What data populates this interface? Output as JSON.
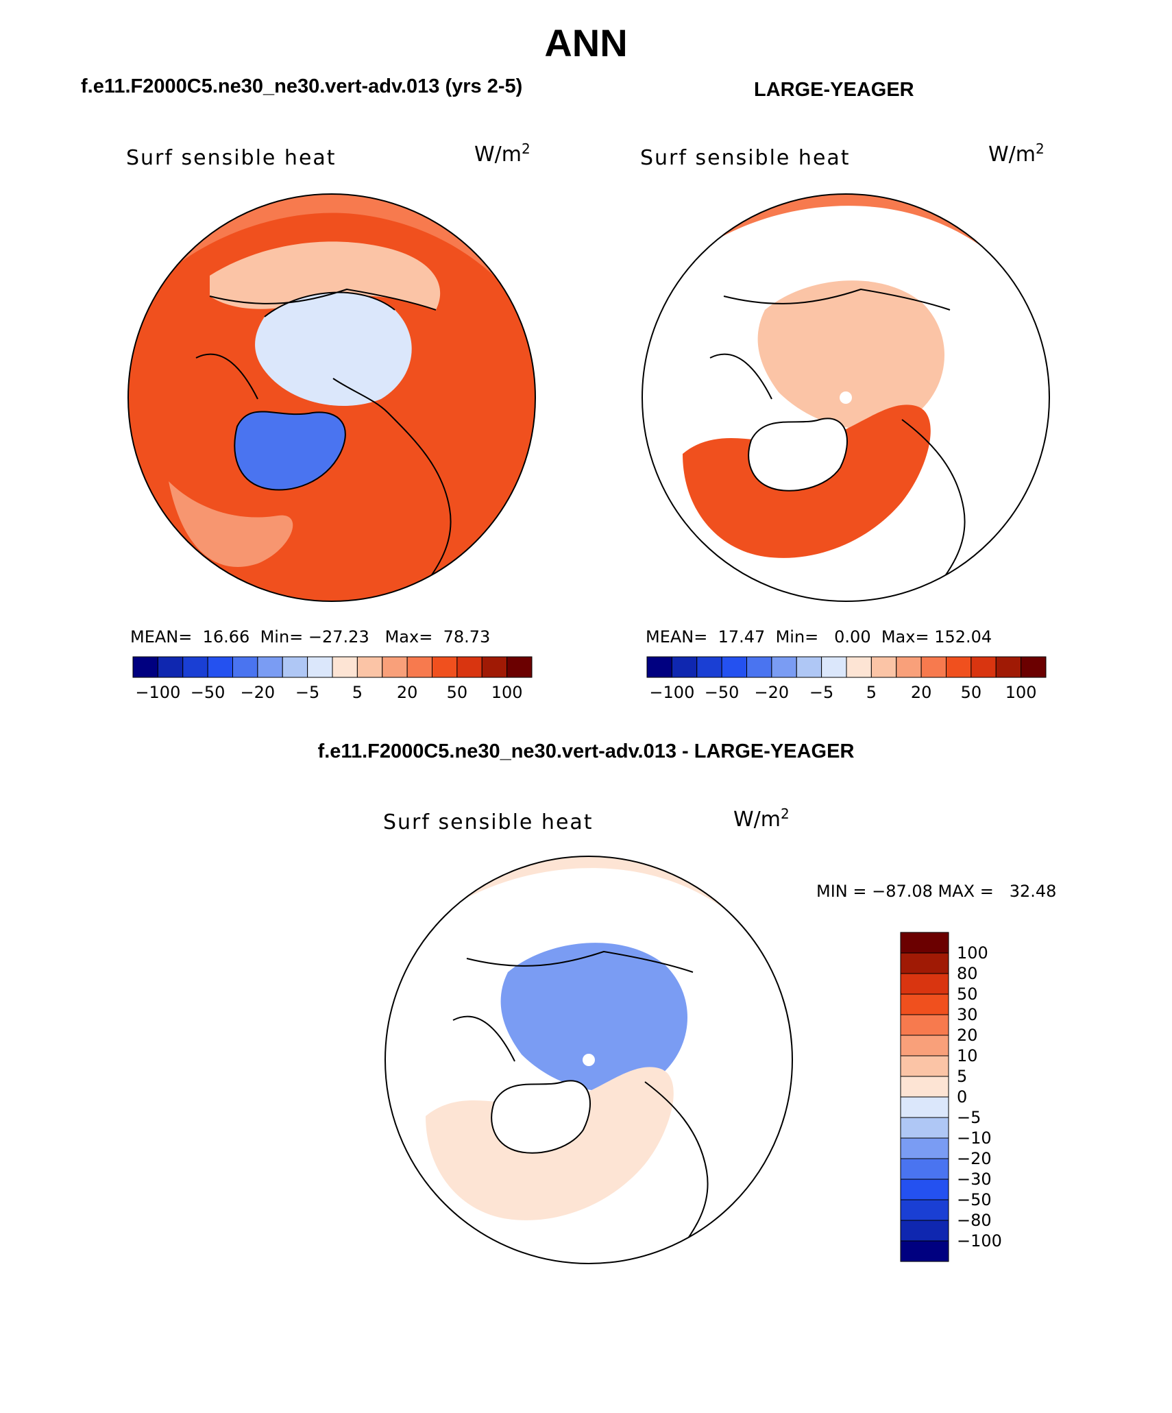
{
  "page_title": "ANN",
  "panels": [
    {
      "case_title": "f.e11.F2000C5.ne30_ne30.vert-adv.013 (yrs 2-5)",
      "variable": "Surf sensible heat",
      "units_base": "W/m",
      "units_exp": "2",
      "stats": "MEAN=  16.66  Min= −27.23   Max=  78.73",
      "colorbar_ticks": [
        "−100",
        "−50",
        "−20",
        "−5",
        "5",
        "20",
        "50",
        "100"
      ]
    },
    {
      "case_title": "LARGE-YEAGER",
      "variable": "Surf sensible heat",
      "units_base": "W/m",
      "units_exp": "2",
      "stats": "MEAN=  17.47  Min=   0.00  Max= 152.04",
      "colorbar_ticks": [
        "−100",
        "−50",
        "−20",
        "−5",
        "5",
        "20",
        "50",
        "100"
      ]
    }
  ],
  "difference": {
    "title": "f.e11.F2000C5.ne30_ne30.vert-adv.013 - LARGE-YEAGER",
    "variable": "Surf sensible heat",
    "units_base": "W/m",
    "units_exp": "2",
    "minmax": "MIN = −87.08 MAX =   32.48",
    "colorbar_ticks": [
      "100",
      "80",
      "50",
      "30",
      "20",
      "10",
      "5",
      "0",
      "−5",
      "−10",
      "−20",
      "−30",
      "−50",
      "−80",
      "−100"
    ]
  },
  "colors": {
    "abs_scale": [
      "#000080",
      "#0f27b0",
      "#1a3fd4",
      "#2451f0",
      "#4a74f0",
      "#7a9cf3",
      "#afc7f5",
      "#dbe7fb",
      "#fde4d4",
      "#fbc4a6",
      "#f9a07a",
      "#f77a4e",
      "#f0501e",
      "#d93510",
      "#a01a05",
      "#6b0000"
    ],
    "diff_scale": [
      "#000080",
      "#0f27b0",
      "#1a3fd4",
      "#2451f0",
      "#4a74f0",
      "#7a9cf3",
      "#afc7f5",
      "#dbe7fb",
      "#fde4d4",
      "#fbc4a6",
      "#f9a07a",
      "#f77a4e",
      "#f0501e",
      "#d93510",
      "#a01a05",
      "#6b0000"
    ],
    "ocean_warm": "#f0501e",
    "ocean_mid": "#f77a4e",
    "land_light": "#fbc4a6",
    "arctic_cool": "#dbe7fb",
    "greenland_blue": "#4a74f0",
    "diff_blue": "#7a9cf3",
    "diff_pale": "#fde4d4",
    "coast": "#000000"
  }
}
